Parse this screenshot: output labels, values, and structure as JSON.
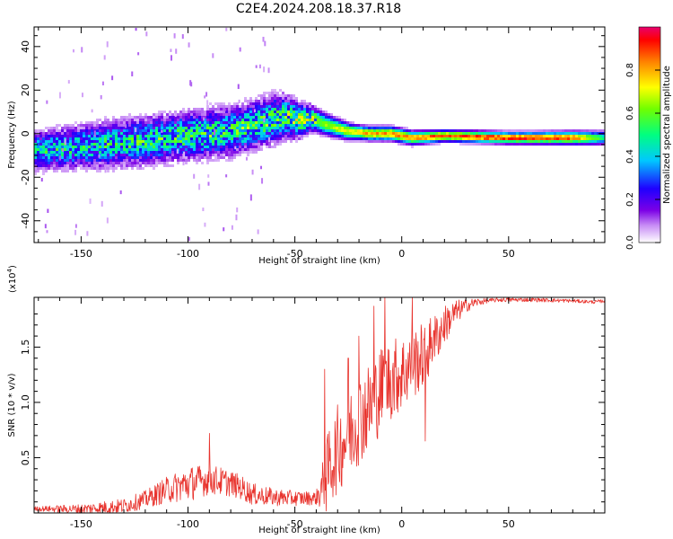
{
  "title": "C2E4.2024.208.18.37.R18",
  "chart_data": [
    {
      "type": "heatmap",
      "title": "C2E4.2024.208.18.37.R18",
      "xlabel": "Height of straight line (km)",
      "ylabel": "Frequency (Hz)",
      "xlim": [
        -172,
        95
      ],
      "ylim": [
        -50,
        49
      ],
      "x_ticks": [
        -150,
        -100,
        -50,
        0,
        50
      ],
      "y_ticks": [
        -40,
        -20,
        0,
        20,
        40
      ],
      "x_tick_labels": [
        "-150",
        "-100",
        "-50",
        "0",
        "50"
      ],
      "y_tick_labels": [
        "-40",
        "-20",
        "0",
        "20",
        "40"
      ],
      "colorbar": {
        "label": "Normalized spectral amplitude",
        "range": [
          0,
          1
        ],
        "ticks": [
          0.0,
          0.2,
          0.4,
          0.6,
          0.8
        ],
        "tick_labels": [
          "0.0",
          "0.2",
          "0.4",
          "0.6",
          "0.8"
        ]
      },
      "ridge_center_hz": {
        "x": [
          -172,
          -150,
          -125,
          -100,
          -80,
          -65,
          -55,
          -48,
          -42,
          -35,
          -25,
          -15,
          -5,
          0,
          5,
          20,
          50,
          80,
          95
        ],
        "y": [
          -8,
          -6,
          -4,
          -1,
          1,
          5,
          8,
          6,
          7,
          4,
          1,
          0,
          0,
          -1,
          -2,
          -1,
          -2,
          -2,
          -2
        ]
      },
      "ridge_half_width_hz": {
        "x": [
          -172,
          -150,
          -125,
          -100,
          -75,
          -60,
          -50,
          -40,
          -30,
          -20,
          0,
          20,
          60,
          95
        ],
        "y": [
          8,
          9,
          10,
          10,
          10,
          10,
          8,
          5,
          4,
          3,
          3,
          2.5,
          2.5,
          3
        ]
      },
      "peak_amplitude": {
        "x": [
          -172,
          -120,
          -60,
          -45,
          -35,
          -20,
          0,
          40,
          60,
          80,
          95
        ],
        "y": [
          0.45,
          0.5,
          0.55,
          0.6,
          0.65,
          0.8,
          0.85,
          0.95,
          0.95,
          0.9,
          0.5
        ]
      }
    },
    {
      "type": "line",
      "xlabel": "Height of straight line (km)",
      "ylabel": "SNR (10 * v/v)",
      "y_multiplier": "(x10",
      "y_multiplier_exponent": "4",
      "y_multiplier_close": ")",
      "xlim": [
        -172,
        95
      ],
      "ylim": [
        0,
        1.95
      ],
      "x_ticks": [
        -150,
        -100,
        -50,
        0,
        50
      ],
      "y_ticks": [
        0.5,
        1.0,
        1.5
      ],
      "x_tick_labels": [
        "-150",
        "-100",
        "-50",
        "0",
        "50"
      ],
      "y_tick_labels": [
        "0.5",
        "1.0",
        "1.5"
      ],
      "line_color": "#e8332d",
      "series": [
        {
          "envelope_x": [
            -172,
            -150,
            -130,
            -120,
            -110,
            -100,
            -95,
            -90,
            -85,
            -80,
            -75,
            -70,
            -60,
            -50,
            -40,
            -36,
            -34,
            -30,
            -25,
            -20,
            -15,
            -10,
            -5,
            0,
            5,
            10,
            15,
            20,
            25,
            30,
            35,
            45,
            60,
            80,
            90,
            95
          ],
          "envelope_y": [
            0.04,
            0.04,
            0.07,
            0.13,
            0.22,
            0.28,
            0.3,
            0.32,
            0.3,
            0.28,
            0.24,
            0.18,
            0.15,
            0.14,
            0.14,
            0.3,
            0.45,
            0.62,
            0.75,
            0.9,
            1.0,
            1.15,
            1.25,
            1.3,
            1.38,
            1.45,
            1.58,
            1.72,
            1.82,
            1.88,
            1.91,
            1.93,
            1.93,
            1.92,
            1.91,
            1.92
          ],
          "spread_x": [
            -172,
            -120,
            -100,
            -80,
            -60,
            -40,
            -35,
            -30,
            -20,
            -10,
            0,
            10,
            20,
            30,
            40,
            95
          ],
          "spread_y": [
            0.02,
            0.08,
            0.16,
            0.12,
            0.08,
            0.06,
            0.35,
            0.4,
            0.42,
            0.4,
            0.35,
            0.3,
            0.18,
            0.06,
            0.02,
            0.015
          ],
          "spikes_x": [
            -90,
            -36,
            -20,
            -13,
            -8,
            11,
            15,
            -25,
            5
          ],
          "spikes_y": [
            0.72,
            1.3,
            1.6,
            1.87,
            1.98,
            0.65,
            1.65,
            1.4,
            1.95
          ]
        }
      ]
    }
  ]
}
